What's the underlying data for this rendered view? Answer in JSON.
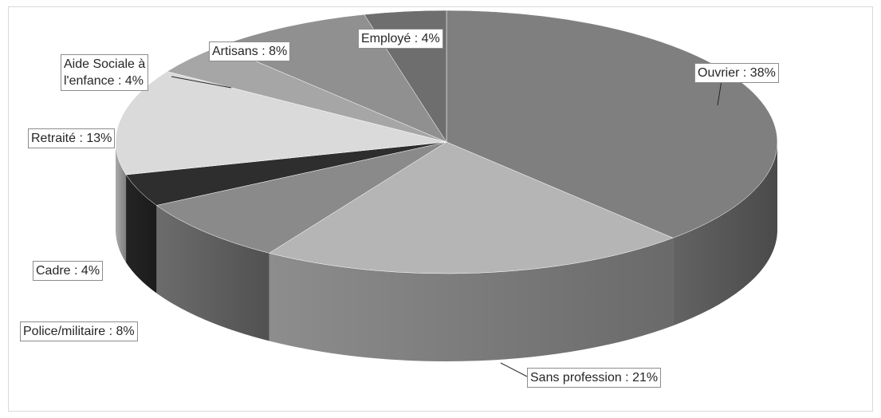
{
  "chart_data": {
    "type": "pie",
    "style": "3d-exploded-none",
    "title": "",
    "categories": [
      "Ouvrier",
      "Sans profession",
      "Police/militaire",
      "Cadre",
      "Retraité",
      "Aide Sociale à l'enfance",
      "Artisans",
      "Employé"
    ],
    "values": [
      38,
      21,
      8,
      4,
      13,
      4,
      8,
      4
    ],
    "unit": "%",
    "labels": [
      {
        "category": "Ouvrier",
        "text": "Ouvrier : 38%"
      },
      {
        "category": "Sans profession",
        "text": "Sans profession : 21%"
      },
      {
        "category": "Police/militaire",
        "text": "Police/militaire : 8%"
      },
      {
        "category": "Cadre",
        "text": "Cadre : 4%"
      },
      {
        "category": "Retraité",
        "text": "Retraité : 13%"
      },
      {
        "category": "Aide Sociale à l'enfance",
        "line1": "Aide Sociale à",
        "line2": "l'enfance : 4%"
      },
      {
        "category": "Artisans",
        "text": "Artisans : 8%"
      },
      {
        "category": "Employé",
        "text": "Employé : 4%"
      }
    ],
    "colors": [
      "#7f7f7f",
      "#b5b5b5",
      "#8a8a8a",
      "#2e2e2e",
      "#dadada",
      "#a6a6a6",
      "#909090",
      "#6e6e6e"
    ],
    "legend": "none"
  }
}
